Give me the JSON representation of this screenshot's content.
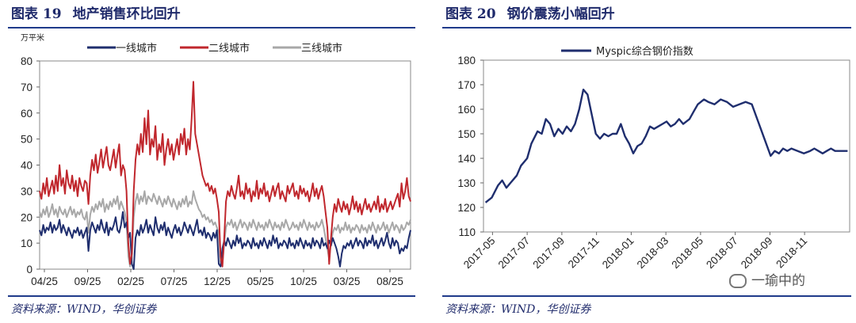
{
  "left_panel": {
    "fig_number": "图表 19",
    "fig_title": "地产销售环比回升",
    "source": "资料来源：WIND，华创证券"
  },
  "right_panel": {
    "fig_number": "图表 20",
    "fig_title": "钢价震荡小幅回升",
    "source": "资料来源：WIND，华创证券"
  },
  "watermark": "一瑜中的",
  "chart_data": [
    {
      "type": "line",
      "title": "地产销售环比回升",
      "unit_label": "万平米",
      "ylim": [
        0,
        80
      ],
      "yticks": [
        0,
        10,
        20,
        30,
        40,
        50,
        60,
        70,
        80
      ],
      "x_ticks": [
        "04/25",
        "09/25",
        "02/25",
        "07/25",
        "12/25",
        "05/25",
        "10/25",
        "03/25",
        "08/25"
      ],
      "x_count": 206,
      "legend_position": "top",
      "grid": false,
      "series": [
        {
          "name": "一线城市",
          "color": "#1f2e6e",
          "values": [
            15,
            13,
            17,
            14,
            16,
            15,
            18,
            14,
            17,
            15,
            16,
            19,
            14,
            17,
            15,
            13,
            16,
            14,
            12,
            15,
            14,
            16,
            13,
            15,
            12,
            14,
            16,
            7,
            15,
            18,
            16,
            14,
            17,
            15,
            19,
            16,
            14,
            18,
            13,
            16,
            15,
            17,
            20,
            15,
            14,
            17,
            22,
            16,
            18,
            12,
            14,
            2,
            0,
            12,
            15,
            13,
            17,
            14,
            16,
            19,
            14,
            17,
            15,
            13,
            20,
            16,
            14,
            17,
            15,
            18,
            13,
            16,
            14,
            12,
            15,
            17,
            14,
            16,
            13,
            15,
            18,
            16,
            14,
            17,
            15,
            13,
            16,
            19,
            14,
            15,
            13,
            16,
            12,
            14,
            13,
            11,
            14,
            12,
            15,
            2,
            1,
            8,
            11,
            9,
            12,
            10,
            8,
            11,
            9,
            13,
            10,
            12,
            8,
            10,
            9,
            11,
            10,
            8,
            12,
            9,
            10,
            8,
            11,
            9,
            12,
            10,
            8,
            11,
            9,
            13,
            10,
            12,
            8,
            10,
            9,
            11,
            10,
            8,
            12,
            9,
            10,
            8,
            11,
            9,
            12,
            10,
            8,
            11,
            9,
            10,
            8,
            12,
            9,
            11,
            10,
            8,
            12,
            9,
            10,
            8,
            11,
            9,
            12,
            10,
            8,
            5,
            1,
            6,
            9,
            8,
            10,
            9,
            11,
            8,
            10,
            12,
            9,
            11,
            10,
            8,
            12,
            9,
            11,
            10,
            13,
            9,
            11,
            8,
            10,
            12,
            9,
            11,
            14,
            10,
            8,
            12,
            9,
            11,
            10,
            6,
            8,
            7,
            9,
            8,
            12,
            15
          ]
        },
        {
          "name": "二线城市",
          "color": "#c0272d",
          "values": [
            30,
            27,
            33,
            29,
            35,
            28,
            31,
            34,
            29,
            36,
            30,
            40,
            32,
            35,
            29,
            38,
            33,
            31,
            36,
            30,
            34,
            28,
            35,
            32,
            30,
            34,
            33,
            25,
            36,
            42,
            38,
            44,
            37,
            41,
            46,
            39,
            43,
            47,
            40,
            38,
            42,
            46,
            39,
            44,
            48,
            36,
            40,
            38,
            30,
            10,
            2,
            6,
            30,
            42,
            48,
            44,
            52,
            45,
            58,
            48,
            61,
            44,
            50,
            47,
            55,
            42,
            48,
            45,
            52,
            40,
            46,
            50,
            44,
            48,
            42,
            46,
            50,
            44,
            52,
            48,
            54,
            44,
            50,
            46,
            58,
            72,
            52,
            48,
            44,
            40,
            36,
            34,
            32,
            33,
            30,
            32,
            29,
            31,
            27,
            22,
            5,
            1,
            12,
            26,
            30,
            28,
            32,
            29,
            27,
            31,
            36,
            28,
            30,
            27,
            33,
            29,
            31,
            26,
            30,
            28,
            34,
            27,
            31,
            29,
            33,
            28,
            30,
            26,
            29,
            32,
            28,
            31,
            33,
            27,
            30,
            28,
            26,
            32,
            29,
            31,
            33,
            28,
            30,
            27,
            32,
            29,
            31,
            28,
            30,
            26,
            29,
            33,
            28,
            31,
            27,
            30,
            32,
            28,
            22,
            16,
            2,
            12,
            20,
            25,
            22,
            27,
            24,
            22,
            26,
            23,
            25,
            21,
            24,
            28,
            23,
            26,
            22,
            25,
            21,
            24,
            27,
            23,
            25,
            22,
            24,
            26,
            23,
            28,
            22,
            25,
            23,
            27,
            22,
            24,
            26,
            23,
            25,
            27,
            29,
            24,
            33,
            27,
            30,
            35,
            28,
            26
          ]
        },
        {
          "name": "三线城市",
          "color": "#a8a8a8",
          "values": [
            22,
            20,
            23,
            21,
            24,
            20,
            22,
            25,
            21,
            23,
            20,
            24,
            22,
            21,
            23,
            20,
            22,
            24,
            21,
            23,
            20,
            22,
            21,
            23,
            20,
            19,
            22,
            14,
            21,
            24,
            22,
            25,
            23,
            26,
            24,
            27,
            22,
            25,
            23,
            26,
            24,
            27,
            25,
            28,
            23,
            26,
            24,
            22,
            18,
            5,
            1,
            4,
            20,
            26,
            29,
            25,
            28,
            26,
            30,
            25,
            28,
            27,
            26,
            29,
            27,
            25,
            28,
            26,
            24,
            27,
            25,
            28,
            26,
            24,
            27,
            25,
            23,
            26,
            24,
            27,
            25,
            28,
            24,
            26,
            25,
            30,
            27,
            25,
            23,
            22,
            20,
            21,
            19,
            20,
            18,
            19,
            17,
            18,
            16,
            14,
            3,
            2,
            10,
            16,
            18,
            17,
            19,
            16,
            18,
            15,
            17,
            19,
            16,
            18,
            17,
            15,
            18,
            16,
            19,
            17,
            15,
            18,
            16,
            17,
            15,
            18,
            16,
            19,
            17,
            15,
            18,
            16,
            17,
            15,
            18,
            16,
            19,
            17,
            15,
            16,
            18,
            16,
            17,
            15,
            18,
            16,
            19,
            17,
            15,
            18,
            16,
            17,
            15,
            18,
            16,
            17,
            19,
            16,
            12,
            8,
            4,
            10,
            14,
            16,
            15,
            17,
            14,
            16,
            15,
            18,
            15,
            17,
            14,
            16,
            15,
            17,
            16,
            14,
            17,
            15,
            16,
            14,
            17,
            15,
            18,
            16,
            14,
            17,
            15,
            16,
            18,
            15,
            17,
            14,
            16,
            18,
            15,
            17,
            16,
            14,
            17,
            15,
            16,
            18,
            17,
            19
          ]
        }
      ]
    },
    {
      "type": "line",
      "title": "钢价震荡小幅回升",
      "ylim": [
        110,
        180
      ],
      "yticks": [
        110,
        120,
        130,
        140,
        150,
        160,
        170,
        180
      ],
      "x_ticks": [
        "2017-05",
        "2017-07",
        "2017-09",
        "2017-11",
        "2018-01",
        "2018-03",
        "2018-05",
        "2018-07",
        "2018-09",
        "2018-11"
      ],
      "x_range": [
        2017.29,
        2019.05
      ],
      "legend_position": "top",
      "grid": false,
      "series": [
        {
          "name": "Myspic综合钢价指数",
          "color": "#1f2e6e",
          "x": [
            2017.3,
            2017.33,
            2017.36,
            2017.38,
            2017.4,
            2017.42,
            2017.45,
            2017.47,
            2017.5,
            2017.52,
            2017.55,
            2017.57,
            2017.59,
            2017.61,
            2017.63,
            2017.65,
            2017.67,
            2017.69,
            2017.71,
            2017.73,
            2017.75,
            2017.77,
            2017.79,
            2017.81,
            2017.83,
            2017.85,
            2017.87,
            2017.89,
            2017.91,
            2017.93,
            2017.95,
            2017.97,
            2017.99,
            2018.01,
            2018.03,
            2018.05,
            2018.07,
            2018.09,
            2018.11,
            2018.13,
            2018.15,
            2018.17,
            2018.19,
            2018.21,
            2018.23,
            2018.25,
            2018.28,
            2018.3,
            2018.32,
            2018.35,
            2018.37,
            2018.4,
            2018.43,
            2018.46,
            2018.49,
            2018.52,
            2018.55,
            2018.58,
            2018.61,
            2018.64,
            2018.67,
            2018.69,
            2018.71,
            2018.73,
            2018.75,
            2018.77,
            2018.8,
            2018.83,
            2018.86,
            2018.88,
            2018.9,
            2018.92,
            2018.94,
            2018.96,
            2018.98,
            2019.0,
            2019.02,
            2019.04
          ],
          "values": [
            122,
            124,
            129,
            131,
            128,
            130,
            133,
            137,
            140,
            146,
            151,
            150,
            156,
            154,
            149,
            152,
            150,
            153,
            151,
            154,
            160,
            168,
            166,
            158,
            150,
            148,
            150,
            149,
            150,
            150,
            154,
            149,
            146,
            142,
            145,
            146,
            149,
            153,
            152,
            153,
            154,
            155,
            153,
            154,
            156,
            154,
            156,
            159,
            162,
            164,
            163,
            162,
            164,
            163,
            161,
            162,
            163,
            162,
            155,
            148,
            141,
            143,
            142,
            144,
            143,
            144,
            143,
            142,
            143,
            144,
            143,
            142,
            143,
            144,
            143,
            143,
            143,
            143
          ]
        }
      ]
    }
  ]
}
